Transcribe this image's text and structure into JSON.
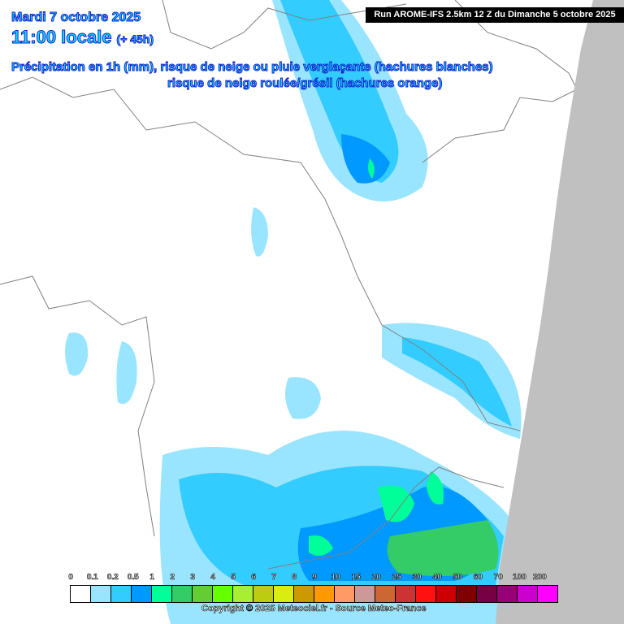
{
  "header": {
    "date": "Mardi 7 octobre 2025",
    "hour": "11:00 locale",
    "lead": "(+ 45h)",
    "subtitle_1": "Précipitation en 1h (mm), risque de neige ou pluie verglaçante (hachures blanches)",
    "subtitle_2": "risque de neige roulée/grésil (hachures orange)",
    "run": "Run AROME-IFS 2.5km 12 Z du Dimanche 5 octobre 2025"
  },
  "legend": {
    "labels": [
      "0",
      "0.1",
      "0.2",
      "0.5",
      "1",
      "2",
      "3",
      "4",
      "5",
      "6",
      "7",
      "8",
      "9",
      "10",
      "15",
      "20",
      "25",
      "30",
      "40",
      "50",
      "60",
      "70",
      "100",
      "200"
    ],
    "colors": [
      "#ffffff",
      "#99e5ff",
      "#33ccff",
      "#0099ff",
      "#00ff99",
      "#33cc66",
      "#66cc33",
      "#66ff00",
      "#a8ee33",
      "#bbcc11",
      "#d8ee11",
      "#cc9900",
      "#ff9900",
      "#ff9966",
      "#cc9999",
      "#cc6633",
      "#cc3333",
      "#ff1111",
      "#cc0000",
      "#800000",
      "#770044",
      "#990077",
      "#cc00cc",
      "#ff00ff"
    ]
  },
  "footer": {
    "copyright": "Copyright © 2025 Meteociel.fr - Source Meteo-France"
  },
  "colors": {
    "outside_domain": "#c0c0c0",
    "borders": "#808080",
    "title_text": "#00e5ff"
  }
}
